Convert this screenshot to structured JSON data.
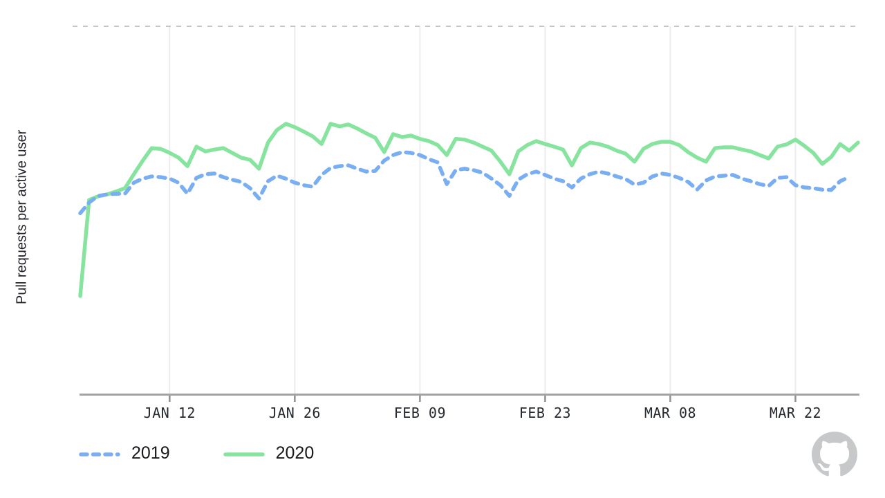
{
  "page": {
    "background": "#ffffff"
  },
  "branding": {
    "logo": "github-octocat-mark",
    "logo_color": "#c6c8ca"
  },
  "axes_style": {
    "grid_color": "#ececec",
    "axis_line_color": "#a3a3a3",
    "tick_mark_color": "#8f9093",
    "tick_label_color": "#24292f",
    "top_boundary_color": "#c6c6c6"
  },
  "chart_data": {
    "type": "line",
    "title": "",
    "xlabel": "",
    "ylabel": "Pull requests per active user",
    "grid": "vertical-only",
    "legend_position": "bottom-left",
    "x_unit": "day-of-period (daily points, weekday-aligned years)",
    "x_range_days": 87,
    "x_ticks": [
      {
        "label": "JAN 12",
        "day": 10
      },
      {
        "label": "JAN 26",
        "day": 24
      },
      {
        "label": "FEB 09",
        "day": 38
      },
      {
        "label": "FEB 23",
        "day": 52
      },
      {
        "label": "MAR 08",
        "day": 66
      },
      {
        "label": "MAR 22",
        "day": 80
      }
    ],
    "y_axis": {
      "min": 0,
      "max": 1,
      "tick_labels": "none (unlabeled relative scale; 1.0 = dashed top boundary of plot)",
      "top_boundary_style": "dashed"
    },
    "series": [
      {
        "name": "2020",
        "color": "#87e49e",
        "style": "solid",
        "values": [
          0.267,
          0.528,
          0.538,
          0.543,
          0.551,
          0.56,
          0.598,
          0.635,
          0.669,
          0.667,
          0.656,
          0.643,
          0.62,
          0.673,
          0.66,
          0.665,
          0.669,
          0.656,
          0.643,
          0.637,
          0.613,
          0.684,
          0.718,
          0.735,
          0.726,
          0.714,
          0.701,
          0.68,
          0.735,
          0.728,
          0.733,
          0.722,
          0.709,
          0.697,
          0.658,
          0.707,
          0.699,
          0.703,
          0.694,
          0.688,
          0.677,
          0.65,
          0.694,
          0.692,
          0.684,
          0.673,
          0.662,
          0.632,
          0.598,
          0.66,
          0.677,
          0.688,
          0.68,
          0.673,
          0.665,
          0.622,
          0.669,
          0.684,
          0.68,
          0.673,
          0.662,
          0.654,
          0.632,
          0.667,
          0.68,
          0.686,
          0.686,
          0.677,
          0.658,
          0.643,
          0.632,
          0.669,
          0.671,
          0.671,
          0.665,
          0.66,
          0.65,
          0.641,
          0.673,
          0.679,
          0.692,
          0.675,
          0.656,
          0.626,
          0.645,
          0.68,
          0.662,
          0.684
        ]
      },
      {
        "name": "2019",
        "color": "#79aef2",
        "style": "dashed",
        "values": [
          0.492,
          0.521,
          0.539,
          0.543,
          0.545,
          0.545,
          0.575,
          0.586,
          0.592,
          0.59,
          0.586,
          0.575,
          0.545,
          0.588,
          0.598,
          0.6,
          0.59,
          0.583,
          0.577,
          0.56,
          0.532,
          0.579,
          0.594,
          0.586,
          0.575,
          0.568,
          0.564,
          0.596,
          0.615,
          0.62,
          0.622,
          0.613,
          0.605,
          0.607,
          0.635,
          0.65,
          0.658,
          0.656,
          0.65,
          0.639,
          0.63,
          0.571,
          0.609,
          0.613,
          0.609,
          0.602,
          0.586,
          0.568,
          0.539,
          0.583,
          0.598,
          0.605,
          0.596,
          0.586,
          0.579,
          0.562,
          0.586,
          0.598,
          0.605,
          0.6,
          0.592,
          0.585,
          0.57,
          0.575,
          0.592,
          0.6,
          0.596,
          0.588,
          0.577,
          0.556,
          0.581,
          0.592,
          0.594,
          0.596,
          0.586,
          0.579,
          0.571,
          0.566,
          0.588,
          0.59,
          0.568,
          0.562,
          0.56,
          0.556,
          0.555,
          0.579,
          0.59,
          null
        ]
      }
    ],
    "legend_order": [
      "2019",
      "2020"
    ]
  }
}
